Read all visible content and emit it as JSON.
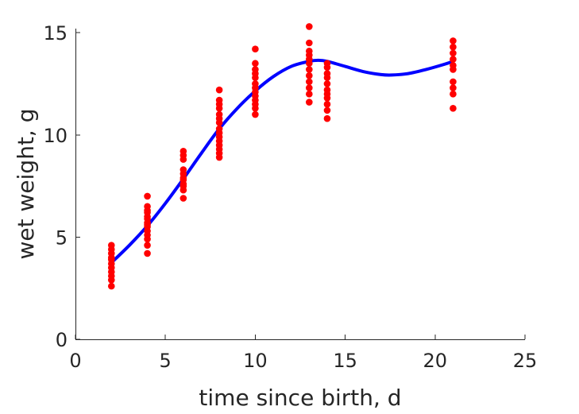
{
  "chart_data": {
    "type": "scatter",
    "title": "",
    "xlabel": "time since birth, d",
    "ylabel": "wet weight, g",
    "xlim": [
      0,
      25
    ],
    "ylim": [
      0,
      15.2
    ],
    "xticks": [
      0,
      5,
      10,
      15,
      20,
      25
    ],
    "yticks": [
      0,
      5,
      10,
      15
    ],
    "grid": false,
    "legend": "none",
    "series": [
      {
        "kind": "points",
        "color": "#ff0000",
        "points": [
          [
            2,
            4.6
          ],
          [
            2,
            4.4
          ],
          [
            2,
            4.2
          ],
          [
            2,
            4.0
          ],
          [
            2,
            3.9
          ],
          [
            2,
            3.7
          ],
          [
            2,
            3.5
          ],
          [
            2,
            3.3
          ],
          [
            2,
            3.1
          ],
          [
            2,
            2.9
          ],
          [
            2,
            2.6
          ],
          [
            4,
            7.0
          ],
          [
            4,
            6.5
          ],
          [
            4,
            6.3
          ],
          [
            4,
            6.2
          ],
          [
            4,
            6.0
          ],
          [
            4,
            5.9
          ],
          [
            4,
            5.7
          ],
          [
            4,
            5.6
          ],
          [
            4,
            5.5
          ],
          [
            4,
            5.3
          ],
          [
            4,
            5.1
          ],
          [
            4,
            4.9
          ],
          [
            4,
            4.6
          ],
          [
            4,
            4.2
          ],
          [
            6,
            9.2
          ],
          [
            6,
            9.0
          ],
          [
            6,
            8.8
          ],
          [
            6,
            8.3
          ],
          [
            6,
            8.1
          ],
          [
            6,
            7.9
          ],
          [
            6,
            7.8
          ],
          [
            6,
            7.6
          ],
          [
            6,
            7.5
          ],
          [
            6,
            7.3
          ],
          [
            6,
            6.9
          ],
          [
            8,
            12.2
          ],
          [
            8,
            11.7
          ],
          [
            8,
            11.5
          ],
          [
            8,
            11.3
          ],
          [
            8,
            11.0
          ],
          [
            8,
            10.8
          ],
          [
            8,
            10.6
          ],
          [
            8,
            10.3
          ],
          [
            8,
            10.1
          ],
          [
            8,
            9.9
          ],
          [
            8,
            9.7
          ],
          [
            8,
            9.5
          ],
          [
            8,
            9.3
          ],
          [
            8,
            9.1
          ],
          [
            8,
            8.9
          ],
          [
            10,
            14.2
          ],
          [
            10,
            13.5
          ],
          [
            10,
            13.2
          ],
          [
            10,
            13.0
          ],
          [
            10,
            12.8
          ],
          [
            10,
            12.5
          ],
          [
            10,
            12.3
          ],
          [
            10,
            12.1
          ],
          [
            10,
            11.9
          ],
          [
            10,
            11.7
          ],
          [
            10,
            11.5
          ],
          [
            10,
            11.3
          ],
          [
            10,
            11.0
          ],
          [
            13,
            15.3
          ],
          [
            13,
            14.5
          ],
          [
            13,
            14.1
          ],
          [
            13,
            13.9
          ],
          [
            13,
            13.7
          ],
          [
            13,
            13.5
          ],
          [
            13,
            13.2
          ],
          [
            13,
            12.9
          ],
          [
            13,
            12.6
          ],
          [
            13,
            12.3
          ],
          [
            13,
            12.0
          ],
          [
            13,
            11.6
          ],
          [
            14,
            13.5
          ],
          [
            14,
            13.3
          ],
          [
            14,
            13.0
          ],
          [
            14,
            12.8
          ],
          [
            14,
            12.5
          ],
          [
            14,
            12.2
          ],
          [
            14,
            12.0
          ],
          [
            14,
            11.8
          ],
          [
            14,
            11.5
          ],
          [
            14,
            11.2
          ],
          [
            14,
            10.8
          ],
          [
            21,
            14.6
          ],
          [
            21,
            14.3
          ],
          [
            21,
            14.0
          ],
          [
            21,
            13.7
          ],
          [
            21,
            13.4
          ],
          [
            21,
            13.2
          ],
          [
            21,
            12.6
          ],
          [
            21,
            12.3
          ],
          [
            21,
            12.0
          ],
          [
            21,
            11.3
          ]
        ]
      },
      {
        "kind": "curve",
        "color": "#0000ff",
        "points": [
          [
            2.0,
            3.75
          ],
          [
            3.0,
            4.6
          ],
          [
            4.0,
            5.55
          ],
          [
            5.0,
            6.65
          ],
          [
            6.0,
            7.85
          ],
          [
            7.0,
            9.1
          ],
          [
            8.0,
            10.3
          ],
          [
            9.0,
            11.3
          ],
          [
            10.0,
            12.15
          ],
          [
            11.0,
            12.85
          ],
          [
            12.0,
            13.35
          ],
          [
            13.0,
            13.6
          ],
          [
            13.5,
            13.65
          ],
          [
            14.0,
            13.6
          ],
          [
            15.0,
            13.35
          ],
          [
            16.0,
            13.1
          ],
          [
            17.0,
            12.95
          ],
          [
            17.6,
            12.93
          ],
          [
            18.5,
            13.0
          ],
          [
            19.5,
            13.2
          ],
          [
            20.5,
            13.45
          ],
          [
            21.0,
            13.6
          ]
        ]
      }
    ]
  }
}
